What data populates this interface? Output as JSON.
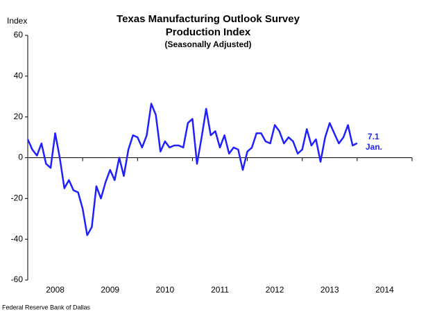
{
  "chart_data": {
    "type": "line",
    "title": "Texas Manufacturing Outlook Survey",
    "subtitle": "Production Index",
    "note": "(Seasonally Adjusted)",
    "ylabel": "Index",
    "source": "Federal Reserve Bank of Dallas",
    "annotations": [
      "7.1",
      "Jan."
    ],
    "x": [
      2008,
      2008.083,
      2008.167,
      2008.25,
      2008.333,
      2008.417,
      2008.5,
      2008.583,
      2008.667,
      2008.75,
      2008.833,
      2008.917,
      2009,
      2009.083,
      2009.167,
      2009.25,
      2009.333,
      2009.417,
      2009.5,
      2009.583,
      2009.667,
      2009.75,
      2009.833,
      2009.917,
      2010,
      2010.083,
      2010.167,
      2010.25,
      2010.333,
      2010.417,
      2010.5,
      2010.583,
      2010.667,
      2010.75,
      2010.833,
      2010.917,
      2011,
      2011.083,
      2011.167,
      2011.25,
      2011.333,
      2011.417,
      2011.5,
      2011.583,
      2011.667,
      2011.75,
      2011.833,
      2011.917,
      2012,
      2012.083,
      2012.167,
      2012.25,
      2012.333,
      2012.417,
      2012.5,
      2012.583,
      2012.667,
      2012.75,
      2012.833,
      2012.917,
      2013,
      2013.083,
      2013.167,
      2013.25,
      2013.333,
      2013.417,
      2013.5,
      2013.583,
      2013.667,
      2013.75,
      2013.833,
      2013.917,
      2014
    ],
    "series": [
      {
        "name": "Production Index",
        "color": "#1f1fff",
        "values": [
          9,
          4,
          1,
          7,
          -3,
          -5,
          12,
          0,
          -15,
          -11,
          -16,
          -17,
          -25,
          -38,
          -34,
          -14,
          -20,
          -12,
          -6,
          -11,
          0,
          -9,
          4,
          11,
          10,
          5,
          11,
          26.5,
          21,
          3,
          8,
          5,
          6,
          6,
          5,
          17,
          19,
          -3,
          10,
          24,
          11,
          13,
          5,
          11,
          2,
          5,
          4,
          -6,
          3,
          5,
          12,
          12,
          8,
          7,
          16,
          13,
          7,
          10,
          8,
          2,
          4,
          14,
          6,
          9,
          -2,
          10,
          17,
          12,
          7,
          10,
          16,
          6,
          7.1
        ]
      }
    ],
    "xlim": [
      2008,
      2015
    ],
    "xticks": [
      {
        "value": 2008.5,
        "label": "2008"
      },
      {
        "value": 2009.5,
        "label": "2009"
      },
      {
        "value": 2010.5,
        "label": "2010"
      },
      {
        "value": 2011.5,
        "label": "2011"
      },
      {
        "value": 2012.5,
        "label": "2012"
      },
      {
        "value": 2013.5,
        "label": "2013"
      },
      {
        "value": 2014.5,
        "label": "2014"
      }
    ],
    "ylim": [
      -60,
      60
    ],
    "yticks": [
      60,
      40,
      20,
      0,
      -20,
      -40,
      -60
    ],
    "grid": false
  }
}
